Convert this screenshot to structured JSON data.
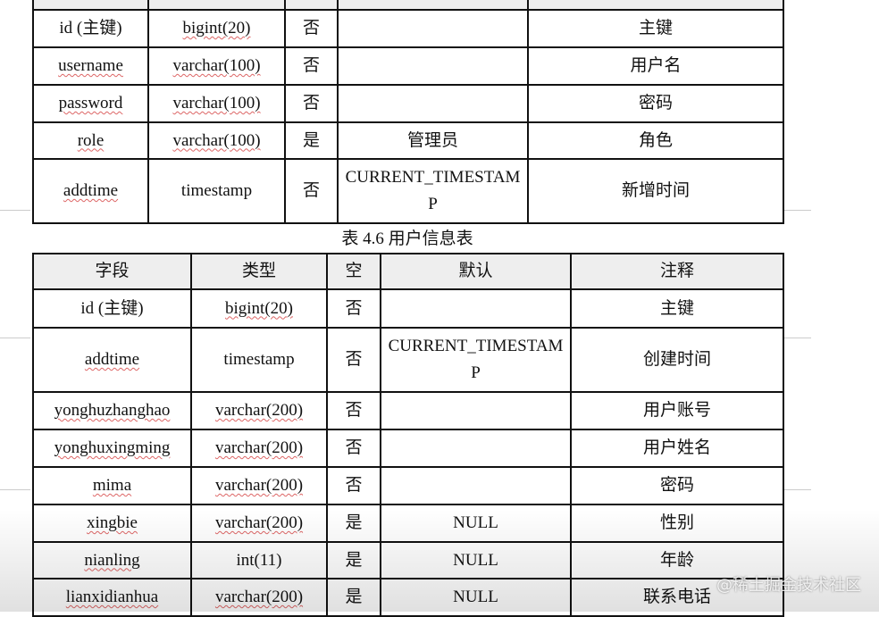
{
  "table1": {
    "rows": [
      [
        "id (主键)",
        "bigint(20)",
        "否",
        "",
        "主键"
      ],
      [
        "username",
        "varchar(100)",
        "否",
        "",
        "用户名"
      ],
      [
        "password",
        "varchar(100)",
        "否",
        "",
        "密码"
      ],
      [
        "role",
        "varchar(100)",
        "是",
        "管理员",
        "角色"
      ],
      [
        "addtime",
        "timestamp",
        "否",
        "CURRENT_TIMESTAMP",
        "新增时间"
      ]
    ]
  },
  "caption": "表 4.6  用户信息表",
  "table2": {
    "headers": [
      "字段",
      "类型",
      "空",
      "默认",
      "注释"
    ],
    "rows": [
      [
        "id (主键)",
        "bigint(20)",
        "否",
        "",
        "主键"
      ],
      [
        "addtime",
        "timestamp",
        "否",
        "CURRENT_TIMESTAMP",
        "创建时间"
      ],
      [
        "yonghuzhanghao",
        "varchar(200)",
        "否",
        "",
        "用户账号"
      ],
      [
        "yonghuxingming",
        "varchar(200)",
        "否",
        "",
        "用户姓名"
      ],
      [
        "mima",
        "varchar(200)",
        "否",
        "",
        "密码"
      ],
      [
        "xingbie",
        "varchar(200)",
        "是",
        "NULL",
        "性别"
      ],
      [
        "nianling",
        "int(11)",
        "是",
        "NULL",
        "年龄"
      ],
      [
        "lianxidianhua",
        "varchar(200)",
        "是",
        "NULL",
        "联系电话"
      ]
    ]
  },
  "watermark": "@稀土掘金技术社区"
}
